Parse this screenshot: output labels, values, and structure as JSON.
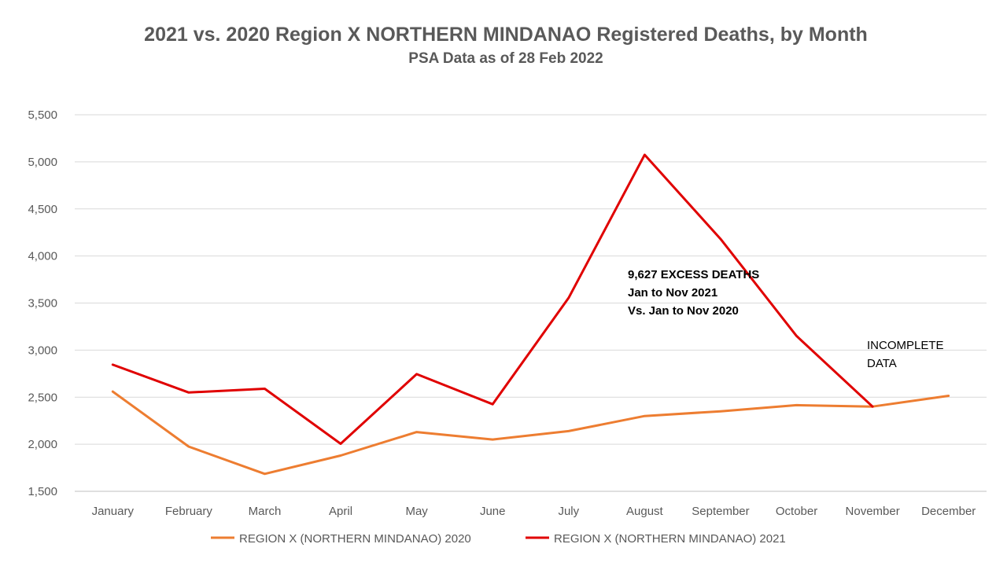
{
  "chart_data": {
    "type": "line",
    "title": "2021 vs. 2020 Region X NORTHERN MINDANAO Registered Deaths, by Month",
    "subtitle": "PSA Data as of 28 Feb 2022",
    "xlabel": "",
    "ylabel": "",
    "categories": [
      "January",
      "February",
      "March",
      "April",
      "May",
      "June",
      "July",
      "August",
      "September",
      "October",
      "November",
      "December"
    ],
    "ylim": [
      1500,
      5500
    ],
    "yticks": [
      1500,
      2000,
      2500,
      3000,
      3500,
      4000,
      4500,
      5000,
      5500
    ],
    "ytick_labels": [
      "1,500",
      "2,000",
      "2,500",
      "3,000",
      "3,500",
      "4,000",
      "4,500",
      "5,000",
      "5,500"
    ],
    "grid": true,
    "legend_position": "bottom",
    "series": [
      {
        "name": "REGION X (NORTHERN MINDANAO) 2020",
        "color": "#ED7D31",
        "values": [
          2560,
          1975,
          1685,
          1880,
          2130,
          2050,
          2140,
          2300,
          2350,
          2415,
          2400,
          2515
        ]
      },
      {
        "name": "REGION X (NORTHERN MINDANAO) 2021",
        "color": "#E00000",
        "values": [
          2845,
          2550,
          2590,
          2005,
          2745,
          2425,
          3555,
          5075,
          4180,
          3150,
          2400,
          null
        ]
      }
    ],
    "annotations": [
      {
        "lines": [
          "9,627 EXCESS DEATHS",
          "Jan to Nov 2021",
          "Vs. Jan to Nov 2020"
        ],
        "style": "bold"
      },
      {
        "lines": [
          "INCOMPLETE",
          "DATA"
        ],
        "style": "normal"
      }
    ]
  }
}
